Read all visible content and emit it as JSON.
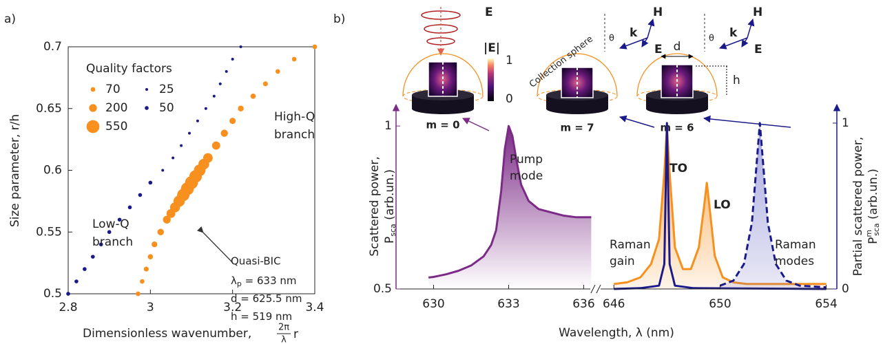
{
  "chart_data": [
    {
      "type": "scatter",
      "panel_label": "a)",
      "xlabel": "Dimensionless wavenumber,",
      "xlabel_fraction": [
        "2π",
        "λ",
        "r"
      ],
      "ylabel": "Size parameter, r/h",
      "xlim": [
        2.8,
        3.4
      ],
      "ylim": [
        0.5,
        0.7
      ],
      "xticks": [
        2.8,
        3,
        3.2,
        3.4
      ],
      "yticks": [
        0.5,
        0.55,
        0.6,
        0.65,
        0.7
      ],
      "series": [
        {
          "color": "#1b1a8a",
          "x": [
            2.8,
            2.82,
            2.84,
            2.86,
            2.88,
            2.9,
            2.925,
            2.95,
            2.975,
            3.0,
            3.03,
            3.055,
            3.075,
            3.095,
            3.115,
            3.135,
            3.155,
            3.17,
            3.185,
            3.2,
            3.22
          ],
          "values": [
            0.5,
            0.51,
            0.52,
            0.53,
            0.54,
            0.55,
            0.56,
            0.57,
            0.58,
            0.59,
            0.6,
            0.61,
            0.62,
            0.63,
            0.64,
            0.65,
            0.66,
            0.67,
            0.68,
            0.69,
            0.7
          ],
          "sizes": [
            50,
            50,
            50,
            50,
            50,
            50,
            50,
            50,
            50,
            50,
            25,
            25,
            25,
            25,
            25,
            25,
            25,
            25,
            25,
            25,
            25
          ]
        },
        {
          "color": "#f7901e",
          "x": [
            2.97,
            2.98,
            2.99,
            3.0,
            3.01,
            3.025,
            3.04,
            3.05,
            3.06,
            3.07,
            3.08,
            3.09,
            3.1,
            3.11,
            3.12,
            3.13,
            3.14,
            3.16,
            3.18,
            3.2,
            3.22,
            3.25,
            3.28,
            3.31,
            3.35,
            3.4
          ],
          "values": [
            0.5,
            0.51,
            0.52,
            0.53,
            0.54,
            0.55,
            0.56,
            0.565,
            0.57,
            0.575,
            0.58,
            0.585,
            0.59,
            0.595,
            0.6,
            0.605,
            0.61,
            0.62,
            0.63,
            0.64,
            0.65,
            0.66,
            0.67,
            0.68,
            0.69,
            0.7
          ],
          "sizes": [
            70,
            70,
            80,
            90,
            110,
            140,
            200,
            260,
            330,
            420,
            500,
            550,
            550,
            520,
            450,
            380,
            300,
            220,
            170,
            130,
            110,
            90,
            80,
            70,
            70,
            70
          ]
        }
      ],
      "size_legend": {
        "title": "Quality factors",
        "groups": [
          {
            "color": "#f7901e",
            "values": [
              70,
              200,
              550
            ]
          },
          {
            "color": "#1b1a8a",
            "values": [
              25,
              50
            ]
          }
        ]
      },
      "annotations": {
        "low_q": [
          "Low-Q",
          "branch"
        ],
        "high_q": [
          "High-Q",
          "branch"
        ],
        "quasi_bic": "Quasi-BIC",
        "params": [
          [
            "λ",
            "p",
            " = 633 nm"
          ],
          [
            "d = 625.5 nm"
          ],
          [
            "h = 519 nm"
          ]
        ]
      }
    },
    {
      "type": "line",
      "panel_label": "b)",
      "xlabel": "Wavelength, λ (nm)",
      "ylabel": [
        "Scattered power,",
        [
          "P",
          "sca",
          " (arb.un.)"
        ]
      ],
      "xlim": [
        628.5,
        636.4
      ],
      "ylim": [
        0.5,
        1.07
      ],
      "xticks": [
        630,
        633,
        636
      ],
      "yticks": [
        0.5,
        1
      ],
      "series": [
        {
          "color": "#7b2a86",
          "fill": true,
          "x": [
            629.8,
            630,
            630.5,
            631,
            631.5,
            632,
            632.3,
            632.5,
            632.7,
            632.85,
            633,
            633.15,
            633.3,
            633.5,
            633.8,
            634.2,
            634.7,
            635.2,
            635.7,
            636.3
          ],
          "values": [
            0.535,
            0.537,
            0.545,
            0.556,
            0.572,
            0.6,
            0.635,
            0.68,
            0.8,
            0.93,
            1.0,
            0.97,
            0.9,
            0.82,
            0.77,
            0.745,
            0.735,
            0.725,
            0.72,
            0.72
          ]
        }
      ],
      "annotations": {
        "pump_mode": [
          "Pump",
          "mode"
        ]
      }
    },
    {
      "type": "line",
      "ylabel": [
        "Partial scattered power,",
        [
          "P",
          "m",
          "sca",
          " (arb.un.)"
        ]
      ],
      "xlim": [
        645.5,
        654.4
      ],
      "ylim": [
        0,
        1.12
      ],
      "xticks": [
        646,
        650,
        654
      ],
      "yticks": [
        0,
        1
      ],
      "series": [
        {
          "color": "#f7901e",
          "fill": true,
          "x": [
            646,
            646.5,
            647,
            647.4,
            647.7,
            647.9,
            648.0,
            648.1,
            648.3,
            648.6,
            648.9,
            649.2,
            649.4,
            649.5,
            649.6,
            649.8,
            650.1,
            650.5,
            651,
            652,
            653,
            654
          ],
          "values": [
            0.03,
            0.04,
            0.07,
            0.15,
            0.3,
            0.7,
            0.98,
            0.7,
            0.25,
            0.12,
            0.12,
            0.25,
            0.5,
            0.64,
            0.5,
            0.2,
            0.07,
            0.04,
            0.03,
            0.03,
            0.03,
            0.03
          ]
        },
        {
          "color": "#1b1a8a",
          "x": [
            646,
            647,
            647.7,
            647.9,
            648.0,
            648.1,
            648.3,
            649,
            654
          ],
          "values": [
            0,
            0.005,
            0.02,
            0.15,
            1.0,
            0.15,
            0.02,
            0.005,
            0
          ]
        },
        {
          "color": "#1b1a8a",
          "dashed": true,
          "fill": true,
          "x": [
            650,
            650.5,
            650.9,
            651.2,
            651.4,
            651.5,
            651.6,
            651.8,
            652.1,
            652.5,
            653,
            654
          ],
          "values": [
            0.02,
            0.05,
            0.15,
            0.4,
            0.8,
            1,
            0.8,
            0.4,
            0.15,
            0.05,
            0.02,
            0.01
          ]
        }
      ],
      "annotations": {
        "to": "TO",
        "lo": "LO",
        "raman_gain": [
          "Raman",
          "gain"
        ],
        "raman_modes": [
          "Raman",
          "modes"
        ]
      }
    }
  ],
  "insets": {
    "modes": [
      "m = 0",
      "m = 7",
      "m = 6"
    ],
    "colorbar": {
      "title": "|E|",
      "ticks": [
        1,
        0
      ]
    },
    "pump_field": "E",
    "collection": "Collection sphere",
    "d": "d",
    "h": "h",
    "waves": [
      {
        "H": "H",
        "k": "k",
        "E": "E",
        "theta": "θ"
      },
      {
        "H": "H",
        "k": "k",
        "E": "E",
        "theta": "θ"
      }
    ]
  }
}
